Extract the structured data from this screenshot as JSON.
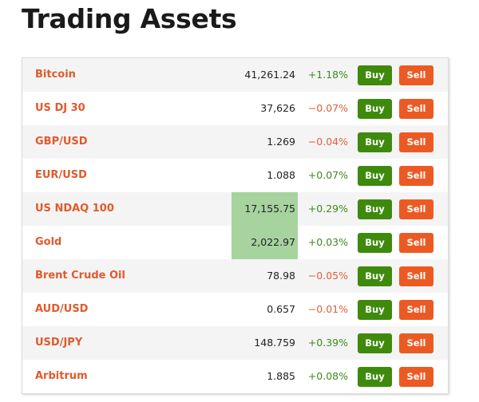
{
  "page": {
    "title": "Trading Assets"
  },
  "buttons": {
    "buy_label": "Buy",
    "sell_label": "Sell"
  },
  "colors": {
    "asset_name": "#e05a2b",
    "positive_change": "#3c8a1c",
    "negative_change": "#e0603a",
    "buy_button": "#3f8a0c",
    "sell_button": "#ec5a24",
    "price_highlight": "#a6d39e"
  },
  "assets": [
    {
      "name": "Bitcoin",
      "price": "41,261.24",
      "change": "+1.18%",
      "direction": "up",
      "highlighted": false
    },
    {
      "name": "US DJ 30",
      "price": "37,626",
      "change": "−0.07%",
      "direction": "down",
      "highlighted": false
    },
    {
      "name": "GBP/USD",
      "price": "1.269",
      "change": "−0.04%",
      "direction": "down",
      "highlighted": false
    },
    {
      "name": "EUR/USD",
      "price": "1.088",
      "change": "+0.07%",
      "direction": "up",
      "highlighted": false
    },
    {
      "name": "US NDAQ 100",
      "price": "17,155.75",
      "change": "+0.29%",
      "direction": "up",
      "highlighted": true
    },
    {
      "name": "Gold",
      "price": "2,022.97",
      "change": "+0.03%",
      "direction": "up",
      "highlighted": true
    },
    {
      "name": "Brent Crude Oil",
      "price": "78.98",
      "change": "−0.05%",
      "direction": "down",
      "highlighted": false
    },
    {
      "name": "AUD/USD",
      "price": "0.657",
      "change": "−0.01%",
      "direction": "down",
      "highlighted": false
    },
    {
      "name": "USD/JPY",
      "price": "148.759",
      "change": "+0.39%",
      "direction": "up",
      "highlighted": false
    },
    {
      "name": "Arbitrum",
      "price": "1.885",
      "change": "+0.08%",
      "direction": "up",
      "highlighted": false
    }
  ]
}
